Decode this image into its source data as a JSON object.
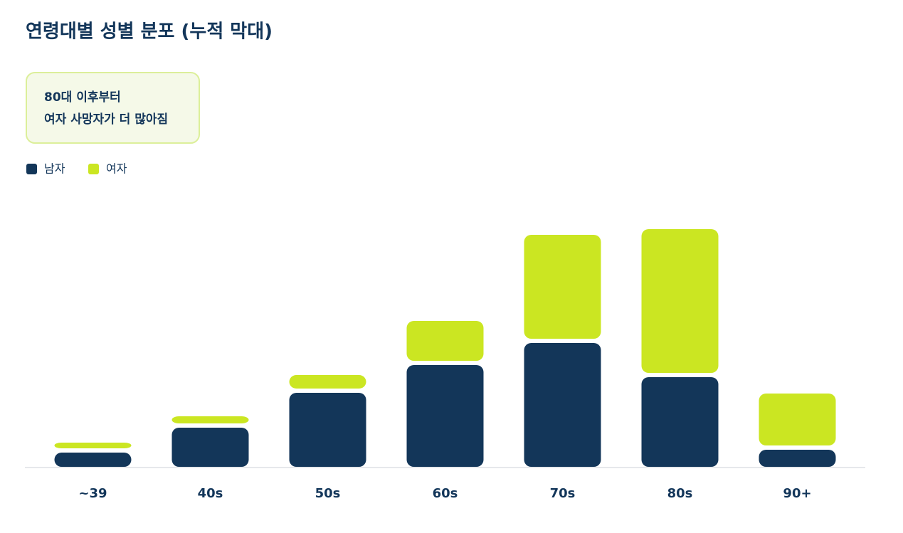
{
  "chart_data": {
    "type": "stacked_bar",
    "title": "연령대별 성별 분포 (누적 막대)",
    "annotation": [
      "80대 이후부터",
      "여자 사망자가 더 많아짐"
    ],
    "categories": [
      "~39",
      "40s",
      "50s",
      "60s",
      "70s",
      "80s",
      "90+"
    ],
    "series": [
      {
        "name": "남자",
        "color": "#133659",
        "values": [
          20,
          55,
          104,
          143,
          174,
          126,
          24
        ]
      },
      {
        "name": "여자",
        "color": "#cbe622",
        "values": [
          14,
          16,
          25,
          62,
          152,
          208,
          79
        ]
      }
    ]
  }
}
